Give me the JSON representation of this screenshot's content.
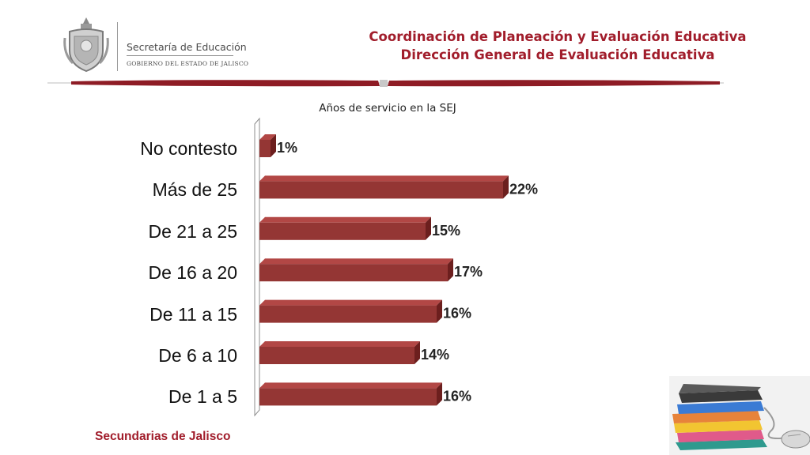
{
  "header": {
    "org_name": "Secretaría de Educación",
    "gov_name": "GOBIERNO DEL ESTADO DE JALISCO",
    "title_line1": "Coordinación de Planeación y Evaluación Educativa",
    "title_line2": "Dirección General de Evaluación Educativa"
  },
  "footer": {
    "text": "Secundarias de Jalisco"
  },
  "colors": {
    "accent": "#a11d2b",
    "bar": "#943634"
  },
  "chart_data": {
    "type": "bar",
    "orientation": "horizontal",
    "title": "Años de servicio  en la SEJ",
    "categories": [
      "No contesto",
      "Más de 25",
      "De 21 a 25",
      "De 16 a 20",
      "De 11 a 15",
      "De 6 a 10",
      "De 1 a 5"
    ],
    "values": [
      1,
      22,
      15,
      17,
      16,
      14,
      16
    ],
    "data_labels": [
      "1%",
      "22%",
      "15%",
      "17%",
      "16%",
      "14%",
      "16%"
    ],
    "unit": "%",
    "grid": false,
    "legend": "none"
  }
}
